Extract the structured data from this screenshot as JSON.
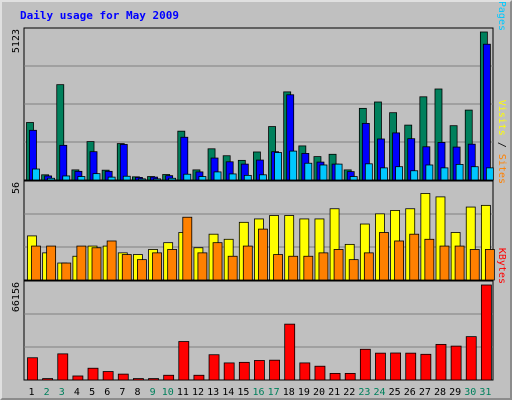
{
  "title": "Daily usage for May 2009",
  "colors": {
    "title": "#0000ff",
    "hits": "#00805c",
    "files": "#0000ff",
    "pages": "#00c8ff",
    "visits": "#ffff00",
    "sites": "#ff8000",
    "kbytes": "#ff0000",
    "weekend_day": "#00805c",
    "weekday": "#000000",
    "panel_bg": "#c0c0c0"
  },
  "chart_data": {
    "type": "bar",
    "days": [
      "1",
      "2",
      "3",
      "4",
      "5",
      "6",
      "7",
      "8",
      "9",
      "10",
      "11",
      "12",
      "13",
      "14",
      "15",
      "16",
      "17",
      "18",
      "19",
      "20",
      "21",
      "22",
      "23",
      "24",
      "25",
      "26",
      "27",
      "28",
      "29",
      "30",
      "31"
    ],
    "weekend_days": [
      "2",
      "3",
      "9",
      "10",
      "16",
      "17",
      "23",
      "24",
      "30",
      "31"
    ],
    "panels": [
      {
        "name": "hits-files-pages",
        "max_label": "5123",
        "ymax": 5123,
        "right_labels": [
          {
            "text": "Hits",
            "color": "#00805c"
          },
          {
            "text": " / ",
            "color": "#000000"
          },
          {
            "text": "Files",
            "color": "#0000ff"
          },
          {
            "text": " / ",
            "color": "#000000"
          },
          {
            "text": "Pages",
            "color": "#00c8ff"
          }
        ],
        "series": [
          {
            "name": "Hits",
            "color": "#00805c",
            "values": [
              1990,
              180,
              3300,
              350,
              1330,
              340,
              1260,
              110,
              120,
              190,
              1690,
              350,
              1080,
              840,
              680,
              970,
              1850,
              3050,
              1180,
              810,
              890,
              350,
              2480,
              2700,
              2330,
              1900,
              2880,
              3150,
              1880,
              2420,
              5123
            ]
          },
          {
            "name": "Files",
            "color": "#0000ff",
            "values": [
              1720,
              140,
              1200,
              300,
              980,
              300,
              1230,
              90,
              100,
              150,
              1480,
              280,
              760,
              630,
              550,
              690,
              980,
              2950,
              920,
              620,
              550,
              290,
              1960,
              1420,
              1630,
              1430,
              1150,
              1300,
              1140,
              1240,
              4700
            ]
          },
          {
            "name": "Pages",
            "color": "#00c8ff",
            "values": [
              380,
              60,
              140,
              120,
              220,
              100,
              130,
              40,
              40,
              60,
              200,
              120,
              280,
              210,
              160,
              180,
              950,
              1000,
              580,
              520,
              550,
              120,
              560,
              420,
              460,
              320,
              520,
              420,
              540,
              460,
              420
            ]
          }
        ]
      },
      {
        "name": "visits-sites",
        "max_label": "56",
        "ymax": 56,
        "right_labels": [
          {
            "text": "Visits",
            "color": "#ffff00"
          },
          {
            "text": " / ",
            "color": "#000000"
          },
          {
            "text": "Sites",
            "color": "#ff8000"
          }
        ],
        "series": [
          {
            "name": "Visits",
            "color": "#ffff00",
            "values": [
              26,
              16,
              10,
              14,
              20,
              20,
              16,
              15,
              18,
              22,
              28,
              19,
              27,
              24,
              34,
              36,
              38,
              38,
              36,
              36,
              42,
              21,
              33,
              39,
              41,
              42,
              51,
              49,
              28,
              43,
              44
            ]
          },
          {
            "name": "Sites",
            "color": "#ff8000",
            "values": [
              20,
              20,
              10,
              20,
              19,
              23,
              15,
              12,
              16,
              18,
              37,
              16,
              22,
              14,
              20,
              30,
              15,
              14,
              14,
              16,
              18,
              12,
              16,
              28,
              23,
              27,
              24,
              20,
              20,
              18,
              18
            ]
          }
        ]
      },
      {
        "name": "kbytes",
        "max_label": "66156",
        "ymax": 66156,
        "right_labels": [
          {
            "text": "KBytes",
            "color": "#ff0000"
          }
        ],
        "series": [
          {
            "name": "KBytes",
            "color": "#ff0000",
            "values": [
              15500,
              1000,
              18200,
              2800,
              8200,
              5900,
              4100,
              1000,
              1000,
              3300,
              26800,
              3300,
              17600,
              11900,
              12300,
              13600,
              13800,
              38900,
              11900,
              9600,
              4600,
              4600,
              21400,
              18700,
              18800,
              18700,
              17900,
              24800,
              23600,
              30200,
              66156
            ]
          }
        ]
      }
    ]
  }
}
